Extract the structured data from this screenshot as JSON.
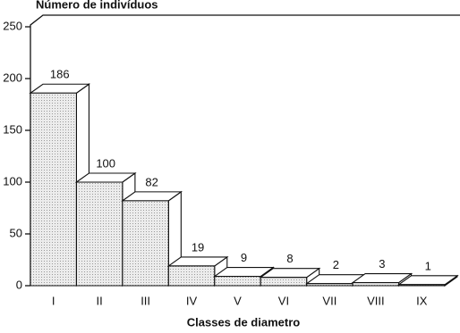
{
  "chart_data": {
    "type": "bar3d",
    "title": "Número de indivíduos",
    "x_label": "Classes de diametro",
    "categories": [
      "I",
      "II",
      "III",
      "IV",
      "V",
      "VI",
      "VII",
      "VIII",
      "IX"
    ],
    "values": [
      186,
      100,
      82,
      19,
      9,
      8,
      2,
      3,
      1
    ],
    "color": "#d9d9d9",
    "ylim": [
      0,
      250
    ],
    "yticks": [
      0,
      50,
      100,
      150,
      200,
      250
    ],
    "grid": false
  }
}
